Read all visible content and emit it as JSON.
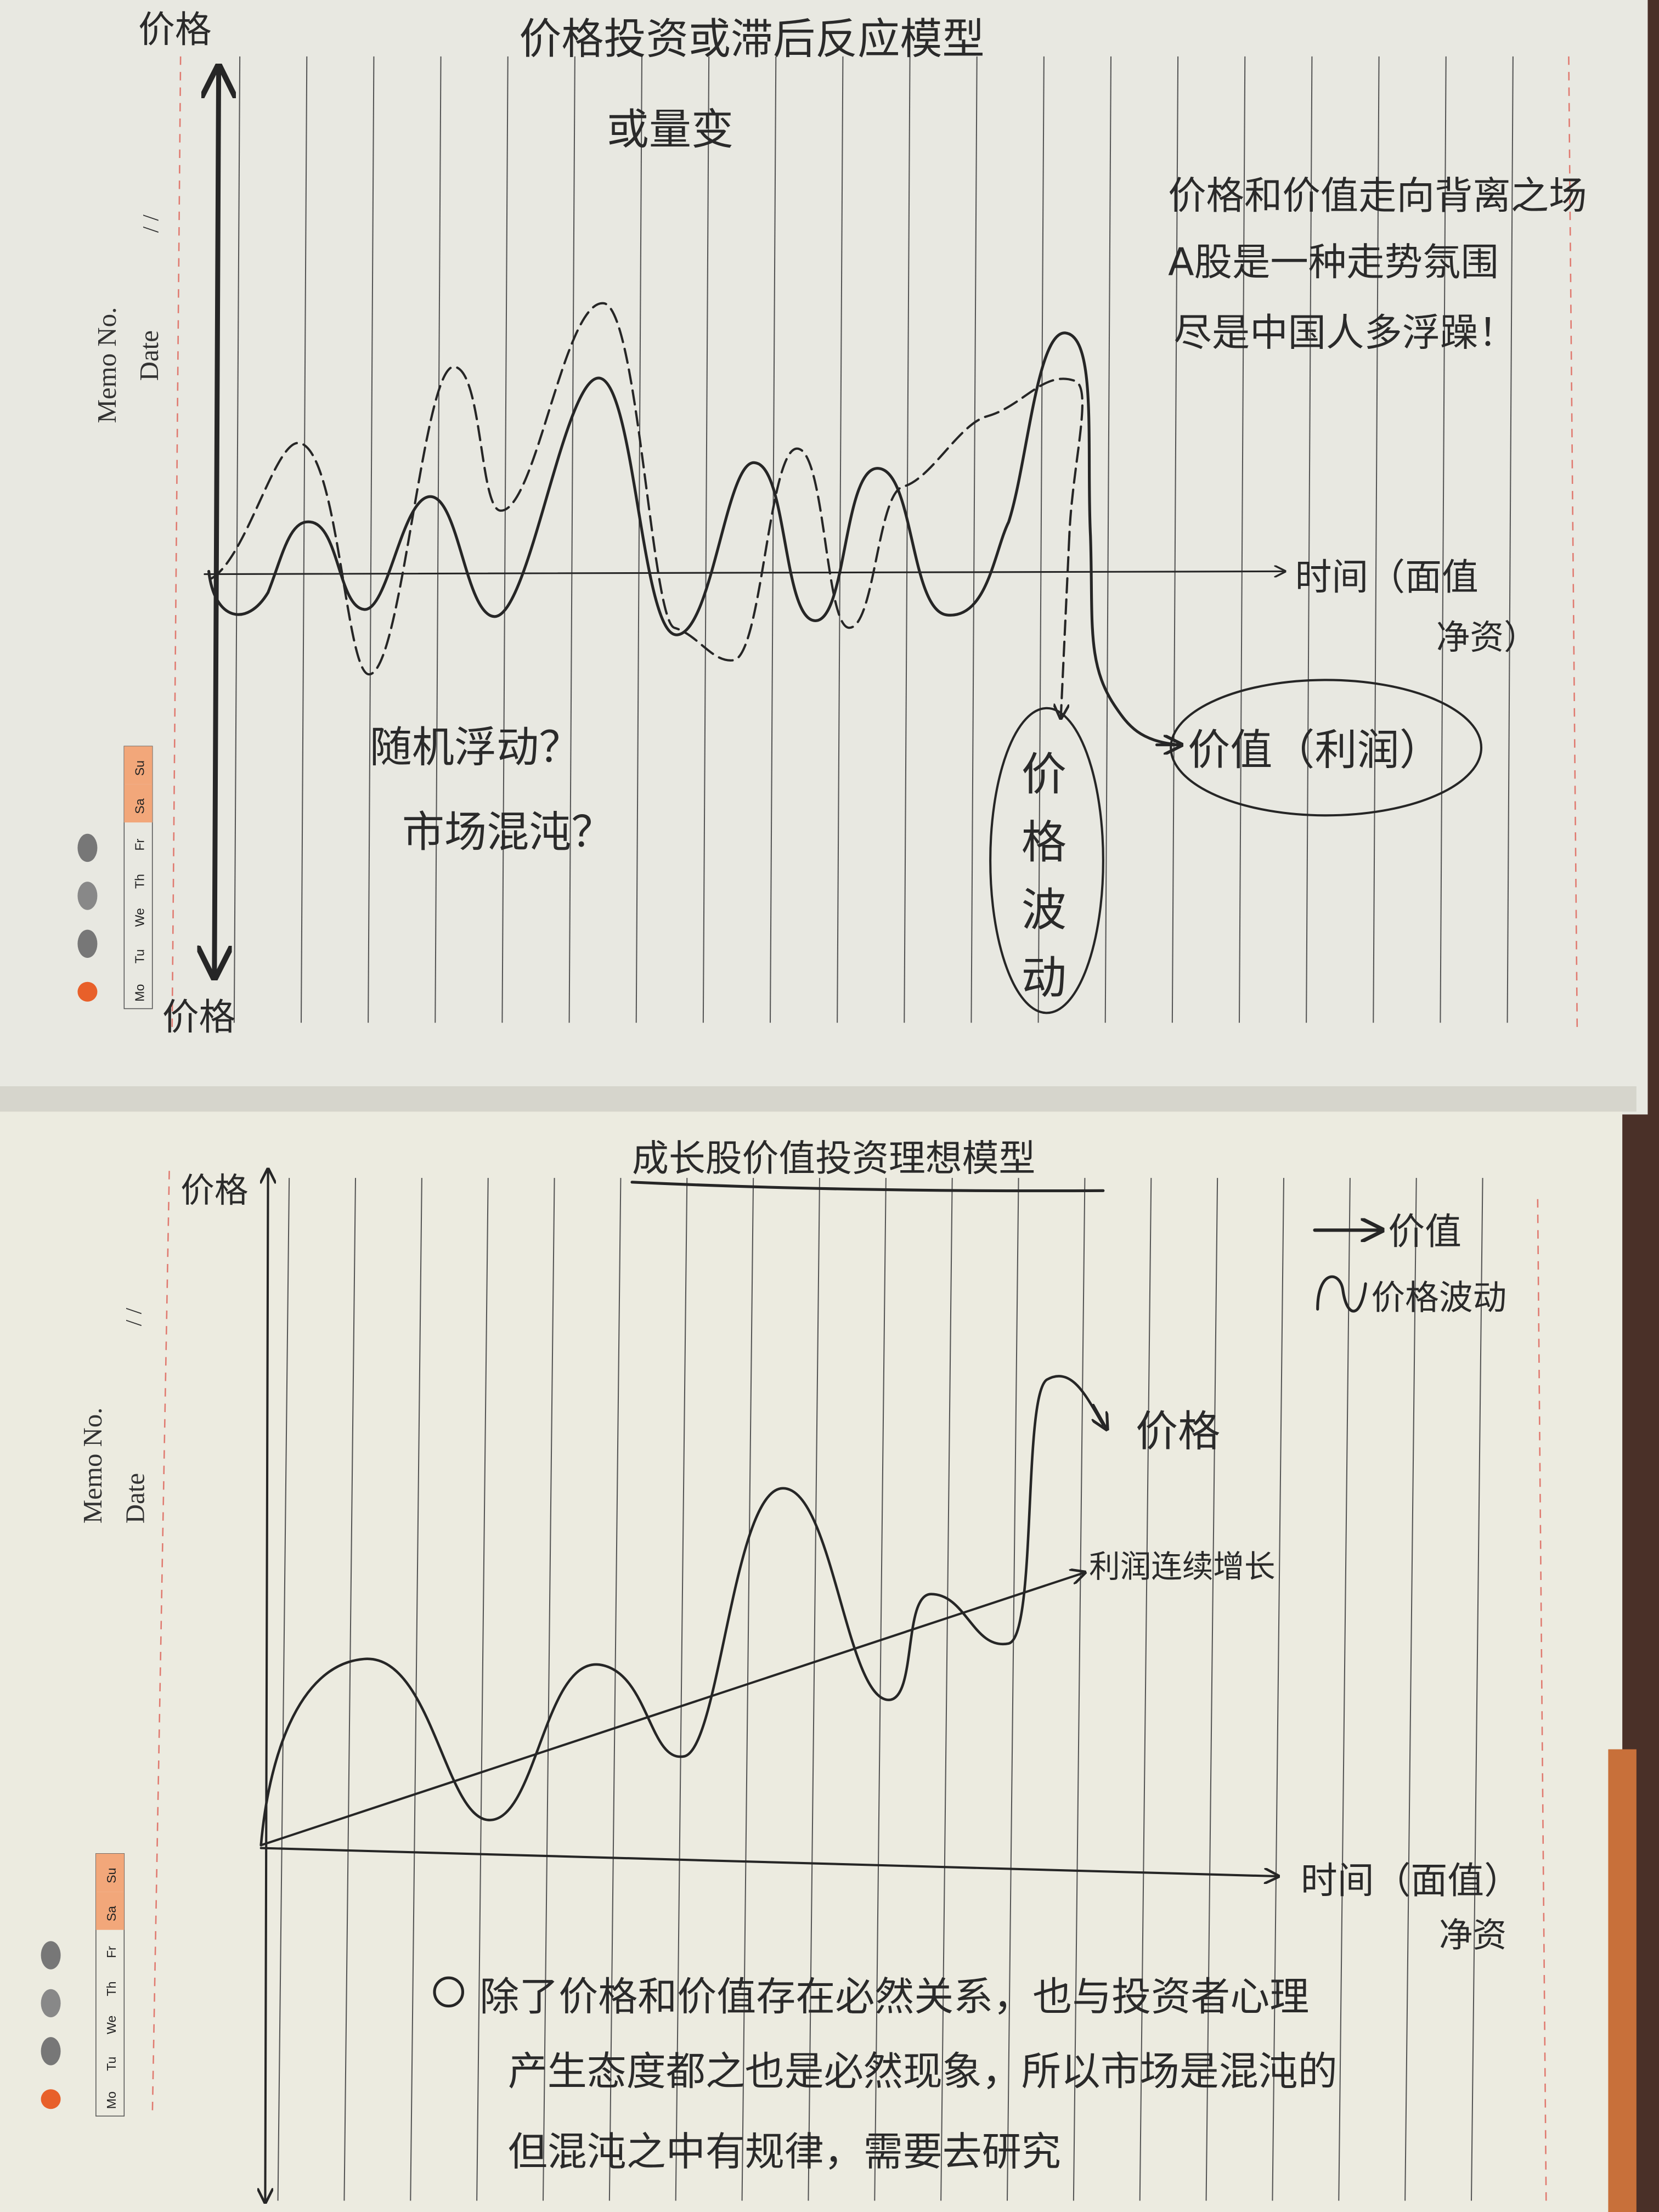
{
  "top_page": {
    "title": "价格投资或滞后反应模型",
    "subtitle": "或量变",
    "y_axis_label_top": "价格",
    "y_axis_label_bottom": "价格",
    "x_axis_label": "时间（面值",
    "x_axis_label_2": "净资）",
    "annotation_random": "随机浮动？",
    "annotation_chaos": "市场混沌？",
    "price_fluctuation_label": [
      "价",
      "格",
      "波",
      "动"
    ],
    "value_label": "价值（利润）",
    "note_lines": [
      "价格和价值走向背离之场",
      "A股是一种走势氛围",
      "尽是中国人多浮躁！"
    ]
  },
  "bottom_page": {
    "title": "成长股价值投资理想模型",
    "y_axis_label": "价格",
    "legend_value": "价值",
    "legend_price_fluctuation": "价格波动",
    "price_label": "价格",
    "profit_label": "利润连续增长",
    "x_axis_label": "时间（面值）",
    "x_axis_label_2": "净资",
    "paragraph_lines": [
      "除了价格和价值存在必然关系，也与投资者心理",
      "产生态度都之也是必然现象，所以市场是混沌的",
      "但混沌之中有规律，需要去研究"
    ]
  },
  "printed": {
    "memo_no": "Memo No.",
    "date": "Date",
    "date_slashes": "/     /",
    "weekdays": [
      "Mo",
      "Tu",
      "We",
      "Th",
      "Fr",
      "Sa",
      "Su"
    ],
    "weather_icons": [
      "sun-icon",
      "cloud-sun-icon",
      "cloud-rain-icon",
      "cloud-storm-icon",
      "cloud-snow-icon"
    ]
  },
  "colors": {
    "paper": "#e9e9e1",
    "ink": "#262626",
    "margin_rule": "#e07a70",
    "weekend_highlight": "#f2a77a",
    "cover": "#4a3028"
  }
}
